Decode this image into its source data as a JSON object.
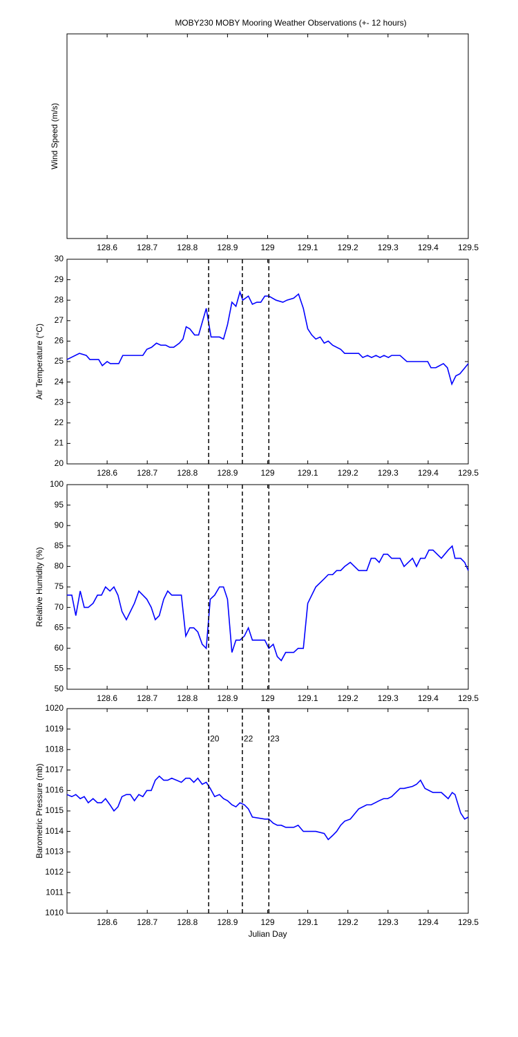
{
  "chart_data": [
    {
      "type": "line",
      "title": "MOBY230 MOBY Mooring Weather Observations (+- 12 hours)",
      "ylabel": "Wind Speed (m/s)",
      "xlim": [
        128.5,
        129.5
      ],
      "xticks": [
        128.6,
        128.7,
        128.8,
        128.9,
        129,
        129.1,
        129.2,
        129.3,
        129.4,
        129.5
      ],
      "series": []
    },
    {
      "type": "line",
      "ylabel": "Air Temperature (°C)",
      "xlim": [
        128.5,
        129.5
      ],
      "xticks": [
        128.6,
        128.7,
        128.8,
        128.9,
        129,
        129.1,
        129.2,
        129.3,
        129.4,
        129.5
      ],
      "ylim": [
        20,
        30
      ],
      "yticks": [
        20,
        21,
        22,
        23,
        24,
        25,
        26,
        27,
        28,
        29,
        30
      ],
      "vlines": [
        128.853,
        128.937,
        129.003
      ],
      "x": [
        128.5,
        128.531,
        128.548,
        128.557,
        128.579,
        128.588,
        128.6,
        128.608,
        128.629,
        128.639,
        128.689,
        128.699,
        128.711,
        128.723,
        128.734,
        128.746,
        128.756,
        128.766,
        128.78,
        128.789,
        128.797,
        128.806,
        128.818,
        128.828,
        128.847,
        128.859,
        128.88,
        128.89,
        128.9,
        128.911,
        128.921,
        128.931,
        128.938,
        128.952,
        128.962,
        128.973,
        128.983,
        128.993,
        129.003,
        129.021,
        129.038,
        129.048,
        129.065,
        129.077,
        129.089,
        129.1,
        129.11,
        129.12,
        129.131,
        129.141,
        129.151,
        129.162,
        129.182,
        129.192,
        129.227,
        129.237,
        129.249,
        129.259,
        129.27,
        129.28,
        129.29,
        129.301,
        129.309,
        129.33,
        129.347,
        129.399,
        129.407,
        129.419,
        129.438,
        129.448,
        129.459,
        129.469,
        129.479,
        129.5
      ],
      "series": [
        {
          "color": "#0000ff",
          "values": [
            25.1,
            25.4,
            25.3,
            25.1,
            25.1,
            24.8,
            25.0,
            24.9,
            24.9,
            25.3,
            25.3,
            25.6,
            25.7,
            25.9,
            25.8,
            25.8,
            25.7,
            25.7,
            25.9,
            26.1,
            26.7,
            26.6,
            26.3,
            26.3,
            27.6,
            26.2,
            26.2,
            26.1,
            26.8,
            27.9,
            27.7,
            28.4,
            28.0,
            28.2,
            27.8,
            27.9,
            27.9,
            28.2,
            28.2,
            28.0,
            27.9,
            28.0,
            28.1,
            28.3,
            27.6,
            26.6,
            26.3,
            26.1,
            26.2,
            25.9,
            26.0,
            25.8,
            25.6,
            25.4,
            25.4,
            25.2,
            25.3,
            25.2,
            25.3,
            25.2,
            25.3,
            25.2,
            25.3,
            25.3,
            25.0,
            25.0,
            24.7,
            24.7,
            24.9,
            24.7,
            23.9,
            24.3,
            24.4,
            24.9
          ]
        }
      ]
    },
    {
      "type": "line",
      "ylabel": "Relative Humidity (%)",
      "xlim": [
        128.5,
        129.5
      ],
      "xticks": [
        128.6,
        128.7,
        128.8,
        128.9,
        129,
        129.1,
        129.2,
        129.3,
        129.4,
        129.5
      ],
      "ylim": [
        50,
        100
      ],
      "yticks": [
        50,
        55,
        60,
        65,
        70,
        75,
        80,
        85,
        90,
        95,
        100
      ],
      "vlines": [
        128.853,
        128.937,
        129.003
      ],
      "x": [
        128.5,
        128.512,
        128.522,
        128.533,
        128.543,
        128.553,
        128.565,
        128.576,
        128.586,
        128.596,
        128.607,
        128.617,
        128.627,
        128.637,
        128.648,
        128.658,
        128.668,
        128.679,
        128.689,
        128.699,
        128.71,
        128.72,
        128.73,
        128.741,
        128.751,
        128.761,
        128.785,
        128.796,
        128.806,
        128.816,
        128.826,
        128.837,
        128.847,
        128.857,
        128.868,
        128.88,
        128.89,
        128.9,
        128.911,
        128.921,
        128.931,
        128.942,
        128.952,
        128.962,
        128.993,
        129.003,
        129.014,
        129.024,
        129.034,
        129.045,
        129.065,
        129.076,
        129.089,
        129.1,
        129.12,
        129.141,
        129.151,
        129.162,
        129.172,
        129.182,
        129.192,
        129.206,
        129.227,
        129.247,
        129.258,
        129.268,
        129.278,
        129.289,
        129.299,
        129.309,
        129.33,
        129.34,
        129.361,
        129.371,
        129.381,
        129.392,
        129.402,
        129.412,
        129.433,
        129.45,
        129.46,
        129.467,
        129.481,
        129.491,
        129.5
      ],
      "series": [
        {
          "color": "#0000ff",
          "values": [
            73,
            73,
            68,
            74,
            70,
            70,
            71,
            73,
            73,
            75,
            74,
            75,
            73,
            69,
            67,
            69,
            71,
            74,
            73,
            72,
            70,
            67,
            68,
            72,
            74,
            73,
            73,
            63,
            65,
            65,
            64,
            61,
            60,
            72,
            73,
            75,
            75,
            72,
            59,
            62,
            62,
            63,
            65,
            62,
            62,
            60,
            61,
            58,
            57,
            59,
            59,
            60,
            60,
            71,
            75,
            77,
            78,
            78,
            79,
            79,
            80,
            81,
            79,
            79,
            82,
            82,
            81,
            83,
            83,
            82,
            82,
            80,
            82,
            80,
            82,
            82,
            84,
            84,
            82,
            84,
            85,
            82,
            82,
            81,
            79
          ]
        }
      ]
    },
    {
      "type": "line",
      "ylabel": "Barometric Pressure (mb)",
      "xlabel": "Julian Day",
      "xlim": [
        128.5,
        129.5
      ],
      "xticks": [
        128.6,
        128.7,
        128.8,
        128.9,
        129,
        129.1,
        129.2,
        129.3,
        129.4,
        129.5
      ],
      "ylim": [
        1010,
        1020
      ],
      "yticks": [
        1010,
        1011,
        1012,
        1013,
        1014,
        1015,
        1016,
        1017,
        1018,
        1019,
        1020
      ],
      "vlines": [
        128.853,
        128.937,
        129.003
      ],
      "annotations": [
        {
          "text": "20",
          "x": 128.853,
          "y": 1018.5,
          "color": "#c03030"
        },
        {
          "text": "22",
          "x": 128.937,
          "y": 1018.5,
          "color": "#c03030"
        },
        {
          "text": "23",
          "x": 129.003,
          "y": 1018.5,
          "color": "#c03030"
        }
      ],
      "x": [
        128.5,
        128.512,
        128.522,
        128.533,
        128.543,
        128.553,
        128.565,
        128.576,
        128.586,
        128.596,
        128.607,
        128.617,
        128.627,
        128.637,
        128.648,
        128.658,
        128.668,
        128.679,
        128.689,
        128.699,
        128.71,
        128.72,
        128.73,
        128.741,
        128.751,
        128.761,
        128.785,
        128.796,
        128.806,
        128.816,
        128.826,
        128.837,
        128.847,
        128.857,
        128.868,
        128.88,
        128.89,
        128.9,
        128.911,
        128.921,
        128.931,
        128.942,
        128.952,
        128.962,
        128.993,
        129.003,
        129.014,
        129.024,
        129.034,
        129.045,
        129.065,
        129.076,
        129.089,
        129.1,
        129.12,
        129.141,
        129.151,
        129.162,
        129.172,
        129.182,
        129.192,
        129.206,
        129.227,
        129.247,
        129.258,
        129.268,
        129.278,
        129.289,
        129.299,
        129.309,
        129.33,
        129.34,
        129.361,
        129.371,
        129.381,
        129.392,
        129.402,
        129.412,
        129.433,
        129.45,
        129.46,
        129.467,
        129.481,
        129.491,
        129.5
      ],
      "series": [
        {
          "color": "#0000ff",
          "values": [
            1015.8,
            1015.7,
            1015.8,
            1015.6,
            1015.7,
            1015.4,
            1015.6,
            1015.4,
            1015.4,
            1015.6,
            1015.3,
            1015.0,
            1015.2,
            1015.7,
            1015.8,
            1015.8,
            1015.5,
            1015.8,
            1015.7,
            1016.0,
            1016.0,
            1016.5,
            1016.7,
            1016.5,
            1016.5,
            1016.6,
            1016.4,
            1016.6,
            1016.6,
            1016.4,
            1016.6,
            1016.3,
            1016.4,
            1016.1,
            1015.7,
            1015.8,
            1015.6,
            1015.5,
            1015.3,
            1015.2,
            1015.4,
            1015.3,
            1015.1,
            1014.7,
            1014.6,
            1014.6,
            1014.4,
            1014.3,
            1014.3,
            1014.2,
            1014.2,
            1014.3,
            1014.0,
            1014.0,
            1014.0,
            1013.9,
            1013.6,
            1013.8,
            1014.0,
            1014.3,
            1014.5,
            1014.6,
            1015.1,
            1015.3,
            1015.3,
            1015.4,
            1015.5,
            1015.6,
            1015.6,
            1015.7,
            1016.1,
            1016.1,
            1016.2,
            1016.3,
            1016.5,
            1016.1,
            1016.0,
            1015.9,
            1015.9,
            1015.6,
            1015.9,
            1015.8,
            1014.9,
            1014.6,
            1014.7
          ]
        }
      ]
    }
  ]
}
